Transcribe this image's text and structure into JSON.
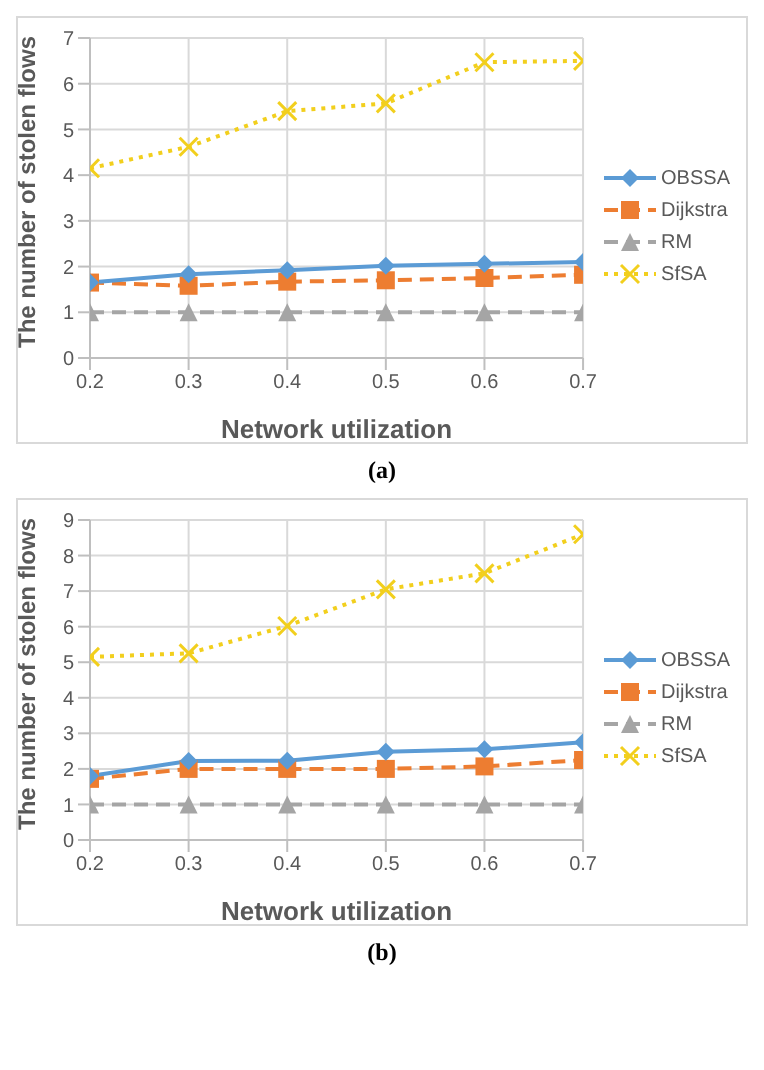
{
  "chart_data": [
    {
      "type": "line",
      "xlabel": "Network utilization",
      "ylabel": "The number of stolen flows",
      "annotations": [
        "(a)"
      ],
      "x": [
        0.2,
        0.3,
        0.4,
        0.5,
        0.6,
        0.7
      ],
      "xlim": [
        0.2,
        0.7
      ],
      "xticks": [
        0.2,
        0.3,
        0.4,
        0.5,
        0.6,
        0.7
      ],
      "ylim": [
        0,
        7
      ],
      "yticks": [
        0,
        1,
        2,
        3,
        4,
        5,
        6,
        7
      ],
      "grid": true,
      "legend": "right",
      "series": [
        {
          "name": "OBSSA",
          "color": "#5b9bd5",
          "marker": "diamond",
          "line_style": "solid",
          "values": [
            1.65,
            1.83,
            1.92,
            2.02,
            2.06,
            2.1
          ]
        },
        {
          "name": "Dijkstra",
          "color": "#ed7d31",
          "marker": "square",
          "line_style": "dashed",
          "values": [
            1.65,
            1.58,
            1.67,
            1.7,
            1.75,
            1.82
          ]
        },
        {
          "name": "RM",
          "color": "#a5a5a5",
          "marker": "triangle",
          "line_style": "dashed",
          "values": [
            1,
            1,
            1,
            1,
            1,
            1
          ]
        },
        {
          "name": "SfSA",
          "color": "#f2cf1d",
          "marker": "cross",
          "line_style": "dotted",
          "values": [
            4.15,
            4.62,
            5.4,
            5.57,
            6.47,
            6.5
          ]
        }
      ]
    },
    {
      "type": "line",
      "xlabel": "Network utilization",
      "ylabel": "The number of stolen flows",
      "annotations": [
        "(b)"
      ],
      "x": [
        0.2,
        0.3,
        0.4,
        0.5,
        0.6,
        0.7
      ],
      "xlim": [
        0.2,
        0.7
      ],
      "xticks": [
        0.2,
        0.3,
        0.4,
        0.5,
        0.6,
        0.7
      ],
      "ylim": [
        0,
        9
      ],
      "yticks": [
        0,
        1,
        2,
        3,
        4,
        5,
        6,
        7,
        8,
        9
      ],
      "grid": true,
      "legend": "right",
      "series": [
        {
          "name": "OBSSA",
          "color": "#5b9bd5",
          "marker": "diamond",
          "line_style": "solid",
          "values": [
            1.8,
            2.22,
            2.23,
            2.48,
            2.55,
            2.75
          ]
        },
        {
          "name": "Dijkstra",
          "color": "#ed7d31",
          "marker": "square",
          "line_style": "dashed",
          "values": [
            1.72,
            2.0,
            2.0,
            2.0,
            2.07,
            2.25
          ]
        },
        {
          "name": "RM",
          "color": "#a5a5a5",
          "marker": "triangle",
          "line_style": "dashed",
          "values": [
            1,
            1,
            1,
            1,
            1,
            1
          ]
        },
        {
          "name": "SfSA",
          "color": "#f2cf1d",
          "marker": "cross",
          "line_style": "dotted",
          "values": [
            5.15,
            5.25,
            6.02,
            7.05,
            7.5,
            8.6
          ]
        }
      ]
    }
  ]
}
